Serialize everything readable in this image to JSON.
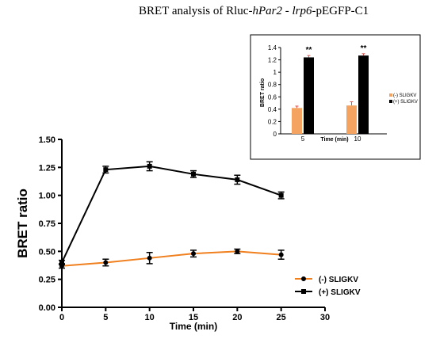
{
  "title": {
    "prefix": "BRET analysis of  Rluc-",
    "gene1": "hPar2",
    "middle": " - ",
    "gene2": "lrp6",
    "suffix": "-pEGFP-C1"
  },
  "chart_data": [
    {
      "type": "line",
      "xlabel": "Time (min)",
      "ylabel": "BRET ratio",
      "xlim": [
        0,
        30
      ],
      "ylim": [
        0,
        1.5
      ],
      "xticks": [
        "0",
        "5",
        "10",
        "15",
        "20",
        "25",
        "30"
      ],
      "yticks": [
        "0.00",
        "0.25",
        "0.50",
        "0.75",
        "1.00",
        "1.25",
        "1.50"
      ],
      "x": [
        0,
        5,
        10,
        15,
        20,
        25
      ],
      "grid": false,
      "legend_position": "bottom-right",
      "series": [
        {
          "name": "(-) SLIGKV",
          "color": "#f07f1e",
          "marker": "circle",
          "values": [
            0.37,
            0.4,
            0.44,
            0.48,
            0.5,
            0.47
          ],
          "errors": [
            0.02,
            0.03,
            0.05,
            0.03,
            0.02,
            0.04
          ]
        },
        {
          "name": "(+) SLIGKV",
          "color": "#000000",
          "marker": "square",
          "values": [
            0.4,
            1.23,
            1.26,
            1.19,
            1.14,
            1.0
          ],
          "errors": [
            0.02,
            0.03,
            0.04,
            0.03,
            0.04,
            0.03
          ]
        }
      ]
    },
    {
      "type": "bar",
      "xlabel": "Time (min)",
      "ylabel": "BRET ratio",
      "ylim": [
        0,
        1.4
      ],
      "yticks": [
        "0",
        "0.2",
        "0.4",
        "0.6",
        "0.8",
        "1",
        "1.2",
        "1.4"
      ],
      "categories": [
        "5",
        "10"
      ],
      "legend_position": "right",
      "annotations": [
        "**",
        "**"
      ],
      "series": [
        {
          "name": "(-) SLIGKV",
          "color": "#f4a460",
          "values": [
            0.42,
            0.46
          ],
          "errors": [
            0.03,
            0.06
          ]
        },
        {
          "name": "(+) SLIGKV",
          "color": "#000000",
          "values": [
            1.24,
            1.27
          ],
          "errors": [
            0.03,
            0.03
          ]
        }
      ]
    }
  ]
}
